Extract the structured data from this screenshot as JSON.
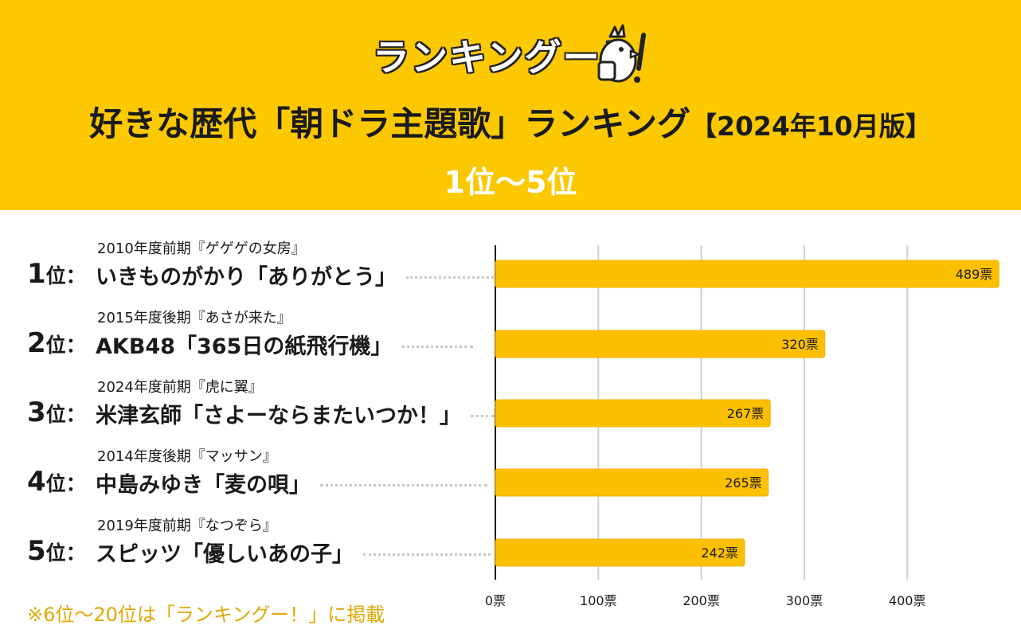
{
  "header": {
    "logo_text": "ランキングー！",
    "title_main": "好きな歴代「朝ドラ主題歌」ランキング",
    "title_edition": "【2024年10月版】",
    "subtitle": "1位〜5位"
  },
  "colors": {
    "header_bg": "#fcc800",
    "bar": "#fcc000",
    "footnote": "#e0a800"
  },
  "rankings": [
    {
      "rank": "1",
      "suffix": "位：",
      "period": "2010年度前期『ゲゲゲの女房』",
      "song": "いきものがかり「ありがとう」"
    },
    {
      "rank": "2",
      "suffix": "位：",
      "period": "2015年度後期『あさが来た』",
      "song": "AKB48「365日の紙飛行機」"
    },
    {
      "rank": "3",
      "suffix": "位：",
      "period": "2024年度前期『虎に翼』",
      "song": "米津玄師「さよーならまたいつか！」"
    },
    {
      "rank": "4",
      "suffix": "位：",
      "period": "2014年度後期『マッサン』",
      "song": "中島みゆき「麦の唄」"
    },
    {
      "rank": "5",
      "suffix": "位：",
      "period": "2019年度前期『なつぞら』",
      "song": "スピッツ「優しいあの子」"
    }
  ],
  "chart_data": {
    "type": "bar",
    "orientation": "horizontal",
    "categories": [
      "いきものがかり「ありがとう」",
      "AKB48「365日の紙飛行機」",
      "米津玄師「さよーならまたいつか！」",
      "中島みゆき「麦の唄」",
      "スピッツ「優しいあの子」"
    ],
    "values": [
      489,
      320,
      267,
      265,
      242
    ],
    "value_labels": [
      "489票",
      "320票",
      "267票",
      "265票",
      "242票"
    ],
    "xlim": [
      0,
      489
    ],
    "xticks": [
      0,
      100,
      200,
      300,
      400
    ],
    "xtick_labels": [
      "0票",
      "100票",
      "200票",
      "300票",
      "400票"
    ],
    "grid": true,
    "legend": "none"
  },
  "footnote": "※6位〜20位は「ランキングー！」に掲載"
}
